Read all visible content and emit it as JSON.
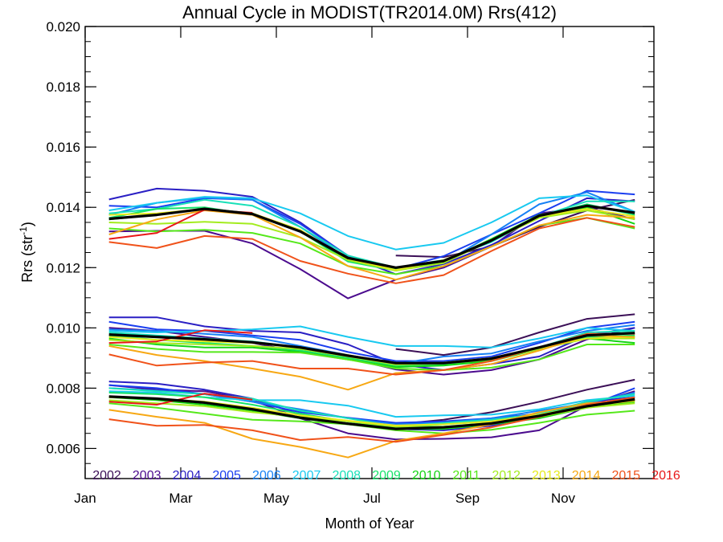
{
  "chart_data": {
    "type": "line",
    "title": "Annual Cycle in MODIST(TR2014.0M) Rrs(412)",
    "xlabel": "Month of Year",
    "ylabel": "Rrs (str",
    "ylabel_sup": "-1",
    "ylabel_tail": ")",
    "xlim": [
      1,
      12.9
    ],
    "ylim": [
      0.005,
      0.02
    ],
    "x_ticks": [
      {
        "x": 1,
        "label": "Jan"
      },
      {
        "x": 3,
        "label": "Mar"
      },
      {
        "x": 5,
        "label": "May"
      },
      {
        "x": 7,
        "label": "Jul"
      },
      {
        "x": 9,
        "label": "Sep"
      },
      {
        "x": 11,
        "label": "Nov"
      }
    ],
    "y_ticks": [
      {
        "y": 0.006,
        "label": "0.006"
      },
      {
        "y": 0.008,
        "label": "0.008"
      },
      {
        "y": 0.01,
        "label": "0.010"
      },
      {
        "y": 0.012,
        "label": "0.012"
      },
      {
        "y": 0.014,
        "label": "0.014"
      },
      {
        "y": 0.016,
        "label": "0.016"
      },
      {
        "y": 0.018,
        "label": "0.018"
      },
      {
        "y": 0.02,
        "label": "0.020"
      }
    ],
    "grid": false,
    "legend_position": "bottom",
    "x": [
      1.5,
      2.5,
      3.5,
      4.5,
      5.5,
      6.5,
      7.5,
      8.5,
      9.5,
      10.5,
      11.5,
      12.5
    ],
    "series": [
      {
        "name": "2002",
        "color": "#3b0f57",
        "groups": [
          [
            null,
            null,
            null,
            null,
            null,
            null,
            0.0124,
            0.01235,
            0.0127,
            0.01335,
            0.0139,
            0.01425
          ],
          [
            null,
            null,
            null,
            null,
            null,
            null,
            0.0093,
            0.0091,
            0.00935,
            0.00985,
            0.0103,
            0.01045
          ],
          [
            null,
            null,
            null,
            null,
            null,
            null,
            0.0068,
            0.00695,
            0.0072,
            0.00755,
            0.00795,
            0.00828
          ]
        ]
      },
      {
        "name": "2003",
        "color": "#4b0b8e",
        "groups": [
          [
            0.0132,
            0.01322,
            0.01322,
            0.0128,
            0.01195,
            0.01098,
            0.0116,
            0.012,
            0.0127,
            0.0138,
            0.014,
            0.0136
          ],
          [
            0.01,
            0.0099,
            0.0097,
            0.0095,
            0.0092,
            0.009,
            0.00862,
            0.00845,
            0.0086,
            0.00895,
            0.00962,
            0.01
          ],
          [
            0.0081,
            0.00795,
            0.0079,
            0.0076,
            0.007,
            0.0065,
            0.0063,
            0.00632,
            0.00637,
            0.0066,
            0.00742,
            0.0079
          ]
        ]
      },
      {
        "name": "2004",
        "color": "#2a1fc4",
        "groups": [
          [
            0.01426,
            0.01462,
            0.01455,
            0.01435,
            0.0135,
            0.01238,
            0.01178,
            0.01212,
            0.01275,
            0.01355,
            0.0143,
            0.0142
          ],
          [
            0.01035,
            0.01035,
            0.01005,
            0.0099,
            0.00985,
            0.00945,
            0.0088,
            0.0086,
            0.0088,
            0.00905,
            0.00975,
            0.01
          ],
          [
            0.00822,
            0.00815,
            0.00795,
            0.00765,
            0.00712,
            0.0069,
            0.00665,
            0.0066,
            0.00675,
            0.0071,
            0.00755,
            0.0077
          ]
        ]
      },
      {
        "name": "2005",
        "color": "#1a3ef0",
        "groups": [
          [
            0.01405,
            0.014,
            0.0143,
            0.01425,
            0.01345,
            0.0124,
            0.01195,
            0.01238,
            0.0131,
            0.0138,
            0.01455,
            0.01443
          ],
          [
            0.0102,
            0.00995,
            0.0099,
            0.00975,
            0.0096,
            0.0092,
            0.0089,
            0.0089,
            0.00905,
            0.0095,
            0.01,
            0.0102
          ],
          [
            0.0081,
            0.008,
            0.0078,
            0.00755,
            0.0072,
            0.00702,
            0.00685,
            0.0069,
            0.007,
            0.00715,
            0.0074,
            0.008
          ]
        ]
      },
      {
        "name": "2006",
        "color": "#1680f5",
        "groups": [
          [
            0.01375,
            0.01415,
            0.01432,
            0.01425,
            0.01335,
            0.0123,
            0.01195,
            0.01215,
            0.0131,
            0.0141,
            0.0145,
            0.01385
          ],
          [
            0.00995,
            0.0099,
            0.0098,
            0.0097,
            0.0094,
            0.0091,
            0.0088,
            0.00905,
            0.00915,
            0.00955,
            0.0099,
            0.0101
          ],
          [
            0.008,
            0.00792,
            0.0078,
            0.00755,
            0.0073,
            0.007,
            0.0068,
            0.00685,
            0.007,
            0.00725,
            0.0075,
            0.00785
          ]
        ]
      },
      {
        "name": "2007",
        "color": "#18c9f0",
        "groups": [
          [
            0.0139,
            0.01415,
            0.01435,
            0.0143,
            0.0138,
            0.01305,
            0.0126,
            0.01282,
            0.0135,
            0.0143,
            0.0144,
            0.01385
          ],
          [
            0.0099,
            0.00985,
            0.0099,
            0.00995,
            0.01005,
            0.0097,
            0.0094,
            0.0094,
            0.00935,
            0.00965,
            0.01,
            0.0099
          ],
          [
            0.0079,
            0.00785,
            0.0077,
            0.0076,
            0.0076,
            0.00742,
            0.00705,
            0.0071,
            0.00712,
            0.0073,
            0.0076,
            0.00775
          ]
        ]
      },
      {
        "name": "2008",
        "color": "#18e0b8",
        "groups": [
          [
            0.0138,
            0.01395,
            0.01425,
            0.01405,
            0.01335,
            0.0124,
            0.012,
            0.01225,
            0.01285,
            0.0137,
            0.0142,
            0.0142
          ],
          [
            0.00985,
            0.00975,
            0.00965,
            0.00955,
            0.00935,
            0.00905,
            0.0088,
            0.0088,
            0.00895,
            0.00935,
            0.00985,
            0.0099
          ],
          [
            0.008,
            0.0079,
            0.0078,
            0.00765,
            0.00725,
            0.007,
            0.00672,
            0.00685,
            0.00695,
            0.00715,
            0.00755,
            0.0078
          ]
        ]
      },
      {
        "name": "2009",
        "color": "#17e36a",
        "groups": [
          [
            0.01365,
            0.01395,
            0.014,
            0.01375,
            0.0132,
            0.0122,
            0.0119,
            0.0122,
            0.0129,
            0.0137,
            0.0141,
            0.01375
          ],
          [
            0.00975,
            0.0096,
            0.0095,
            0.0094,
            0.00925,
            0.009,
            0.00875,
            0.0088,
            0.00895,
            0.0093,
            0.0097,
            0.00975
          ],
          [
            0.00785,
            0.0078,
            0.0077,
            0.00745,
            0.00715,
            0.0069,
            0.0067,
            0.0068,
            0.0069,
            0.00712,
            0.00745,
            0.00765
          ]
        ]
      },
      {
        "name": "2010",
        "color": "#14d414",
        "groups": [
          [
            0.0136,
            0.01375,
            0.01395,
            0.0138,
            0.0132,
            0.01228,
            0.01195,
            0.0122,
            0.01295,
            0.01375,
            0.014,
            0.01345
          ],
          [
            0.00965,
            0.00945,
            0.00935,
            0.00935,
            0.0092,
            0.00895,
            0.0087,
            0.00875,
            0.0089,
            0.0093,
            0.00965,
            0.0095
          ],
          [
            0.0077,
            0.0076,
            0.00745,
            0.00725,
            0.007,
            0.0068,
            0.00665,
            0.00665,
            0.0068,
            0.007,
            0.00735,
            0.00755
          ]
        ]
      },
      {
        "name": "2011",
        "color": "#55e81a",
        "groups": [
          [
            0.0133,
            0.0132,
            0.01325,
            0.01315,
            0.0128,
            0.01205,
            0.01178,
            0.01205,
            0.0127,
            0.0134,
            0.01365,
            0.0133
          ],
          [
            0.00945,
            0.0093,
            0.0092,
            0.0092,
            0.00918,
            0.00895,
            0.00865,
            0.0086,
            0.00868,
            0.00895,
            0.00945,
            0.00945
          ],
          [
            0.0075,
            0.00735,
            0.00715,
            0.00695,
            0.0069,
            0.0068,
            0.0066,
            0.0065,
            0.00662,
            0.00685,
            0.00712,
            0.00725
          ]
        ]
      },
      {
        "name": "2012",
        "color": "#a3ec1e",
        "groups": [
          [
            0.0135,
            0.01345,
            0.01352,
            0.01345,
            0.013,
            0.01225,
            0.0119,
            0.01215,
            0.0129,
            0.01365,
            0.0139,
            0.0136
          ],
          [
            0.0096,
            0.0095,
            0.00945,
            0.0094,
            0.0093,
            0.00905,
            0.00878,
            0.00882,
            0.00895,
            0.0093,
            0.00965,
            0.00965
          ],
          [
            0.0076,
            0.0075,
            0.0074,
            0.0072,
            0.00705,
            0.0069,
            0.00672,
            0.00672,
            0.00685,
            0.00705,
            0.00735,
            0.0075
          ]
        ]
      },
      {
        "name": "2013",
        "color": "#e6ea1c",
        "groups": [
          [
            0.01375,
            0.0138,
            0.01395,
            0.0138,
            0.01325,
            0.0123,
            0.01192,
            0.01225,
            0.0129,
            0.0137,
            0.01395,
            0.0137
          ],
          [
            0.0097,
            0.0096,
            0.00955,
            0.0095,
            0.00935,
            0.0091,
            0.00882,
            0.00885,
            0.009,
            0.00935,
            0.00965,
            0.0097
          ],
          [
            0.0077,
            0.00765,
            0.00755,
            0.00735,
            0.0071,
            0.00692,
            0.00676,
            0.0068,
            0.0069,
            0.00712,
            0.0074,
            0.00758
          ]
        ]
      },
      {
        "name": "2014",
        "color": "#f7a814",
        "groups": [
          [
            0.0131,
            0.0136,
            0.0139,
            0.01375,
            0.013,
            0.01205,
            0.0116,
            0.01205,
            0.0127,
            0.0134,
            0.01375,
            0.01365
          ],
          [
            0.0094,
            0.0091,
            0.0089,
            0.00865,
            0.00838,
            0.00795,
            0.0085,
            0.0086,
            0.0088,
            0.00925,
            0.00975,
            0.0097
          ],
          [
            0.00728,
            0.00705,
            0.00685,
            0.00632,
            0.00605,
            0.0057,
            0.00625,
            0.0065,
            0.0068,
            0.0072,
            0.0075,
            0.0076
          ]
        ]
      },
      {
        "name": "2015",
        "color": "#f0521a",
        "groups": [
          [
            0.01285,
            0.01265,
            0.01305,
            0.01295,
            0.01222,
            0.0118,
            0.01148,
            0.01175,
            0.01255,
            0.0133,
            0.01365,
            0.01335
          ],
          [
            0.00912,
            0.00875,
            0.00885,
            0.0089,
            0.00865,
            0.00865,
            0.00845,
            0.0086,
            0.0089,
            0.00935,
            0.0098,
            0.0098
          ],
          [
            0.00697,
            0.00675,
            0.00678,
            0.0066,
            0.00628,
            0.00638,
            0.00622,
            0.00645,
            0.0067,
            0.00705,
            0.00745,
            0.0077
          ]
        ]
      },
      {
        "name": "2016",
        "color": "#e81818",
        "groups": [
          [
            0.01295,
            0.01315,
            0.01392,
            0.01382,
            null,
            null,
            null,
            null,
            null,
            null,
            null,
            null
          ],
          [
            0.0095,
            0.00955,
            0.00992,
            0.00983,
            null,
            null,
            null,
            null,
            null,
            null,
            null,
            null
          ],
          [
            0.00755,
            0.00745,
            0.00782,
            0.00762,
            null,
            null,
            null,
            null,
            null,
            null,
            null,
            null
          ]
        ]
      }
    ],
    "mean": {
      "color": "#000000",
      "groups": [
        [
          0.01362,
          0.01375,
          0.01395,
          0.01378,
          0.0132,
          0.01232,
          0.012,
          0.01222,
          0.0129,
          0.01372,
          0.01405,
          0.01382
        ],
        [
          0.00978,
          0.0097,
          0.00962,
          0.00952,
          0.00935,
          0.00908,
          0.00883,
          0.00883,
          0.00898,
          0.00935,
          0.00975,
          0.00983
        ],
        [
          0.00772,
          0.00765,
          0.00752,
          0.0073,
          0.00702,
          0.00682,
          0.00665,
          0.0067,
          0.00683,
          0.00708,
          0.0074,
          0.00763
        ]
      ]
    }
  }
}
